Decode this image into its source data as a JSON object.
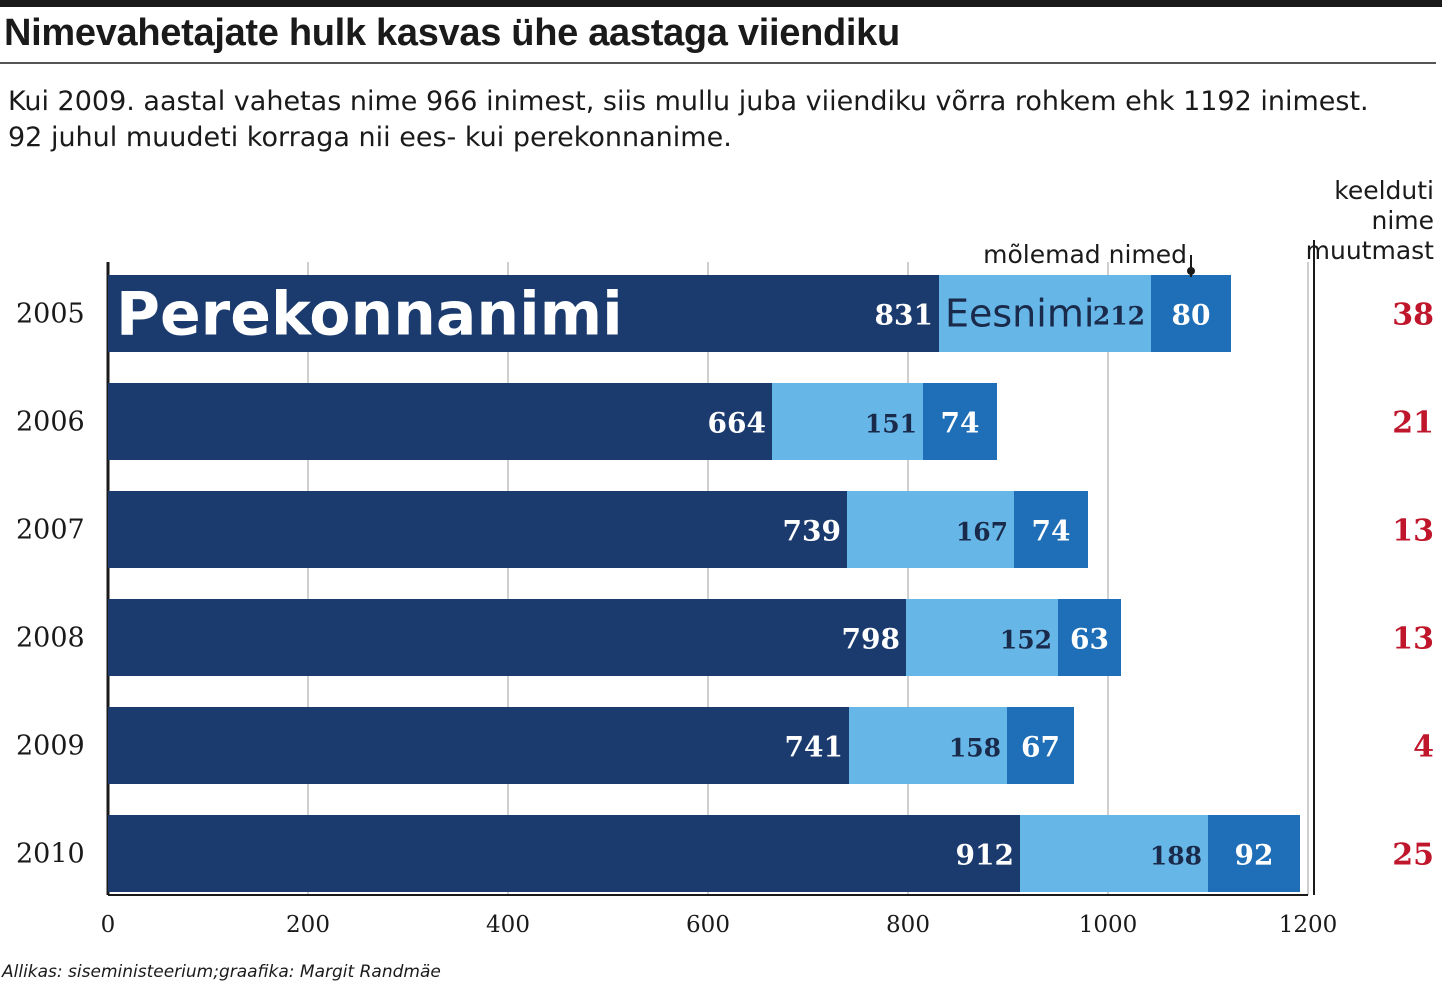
{
  "title": "Nimevahetajate hulk kasvas ühe aastaga viiendiku",
  "subtitle": "Kui 2009. aastal vahetas nime 966 inimest, siis mullu juba viiendiku võrra rohkem ehk 1192 inimest. 92 juhul muudeti korraga nii ees- kui perekonnanime.",
  "source": "Allikas: siseministeerium;graafika:  Margit Randmäe",
  "colors": {
    "perekonnanimi": "#1b3b6f",
    "eesnimi": "#66b6e8",
    "molemad": "#1f6fb8",
    "refused": "#c0162c"
  },
  "chart_data": {
    "type": "bar",
    "orientation": "horizontal",
    "stacked": true,
    "categories": [
      "2005",
      "2006",
      "2007",
      "2008",
      "2009",
      "2010"
    ],
    "series": [
      {
        "name": "Perekonnanimi",
        "values": [
          831,
          664,
          739,
          798,
          741,
          912
        ]
      },
      {
        "name": "Eesnimi",
        "values": [
          212,
          151,
          167,
          152,
          158,
          188
        ]
      },
      {
        "name": "mõlemad nimed",
        "values": [
          80,
          74,
          74,
          63,
          67,
          92
        ]
      }
    ],
    "refused_header": [
      "keelduti",
      "nime",
      "muutmast"
    ],
    "refused": [
      38,
      21,
      13,
      13,
      4,
      25
    ],
    "xlim": [
      0,
      1200
    ],
    "xticks": [
      0,
      200,
      400,
      600,
      800,
      1000,
      1200
    ],
    "grid": true
  }
}
